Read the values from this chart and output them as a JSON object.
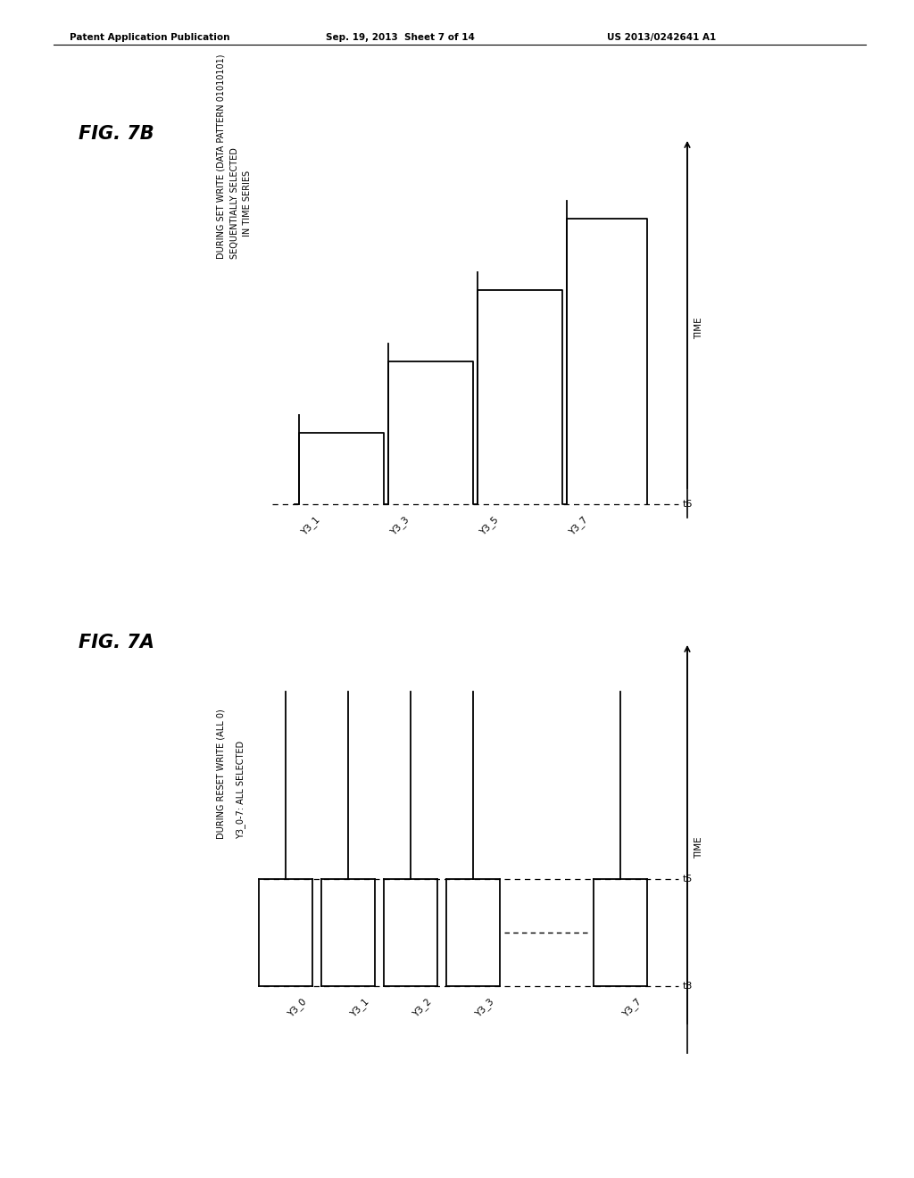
{
  "bg_color": "#ffffff",
  "text_color": "#000000",
  "header_left": "Patent Application Publication",
  "header_center": "Sep. 19, 2013  Sheet 7 of 14",
  "header_right": "US 2013/0242641 A1",
  "fig7b": {
    "label": "FIG. 7B",
    "title_line1": "DURING SET WRITE (DATA PATTERN 01010101)",
    "title_line2": "SEQUENTIALLY SELECTED",
    "title_line3": "IN TIME SERIES",
    "time_label": "TIME",
    "t_label": "t6",
    "signals": [
      "Y3_1",
      "Y3_3",
      "Y3_5",
      "Y3_7"
    ]
  },
  "fig7a": {
    "label": "FIG. 7A",
    "title_line1": "DURING RESET WRITE (ALL 0)",
    "title_line2": "Y3_0-7: ALL SELECTED",
    "time_label": "TIME",
    "t3_label": "t3",
    "t5_label": "t5",
    "signals": [
      "Y3_0",
      "Y3_1",
      "Y3_2",
      "Y3_3",
      "Y3_7"
    ]
  }
}
